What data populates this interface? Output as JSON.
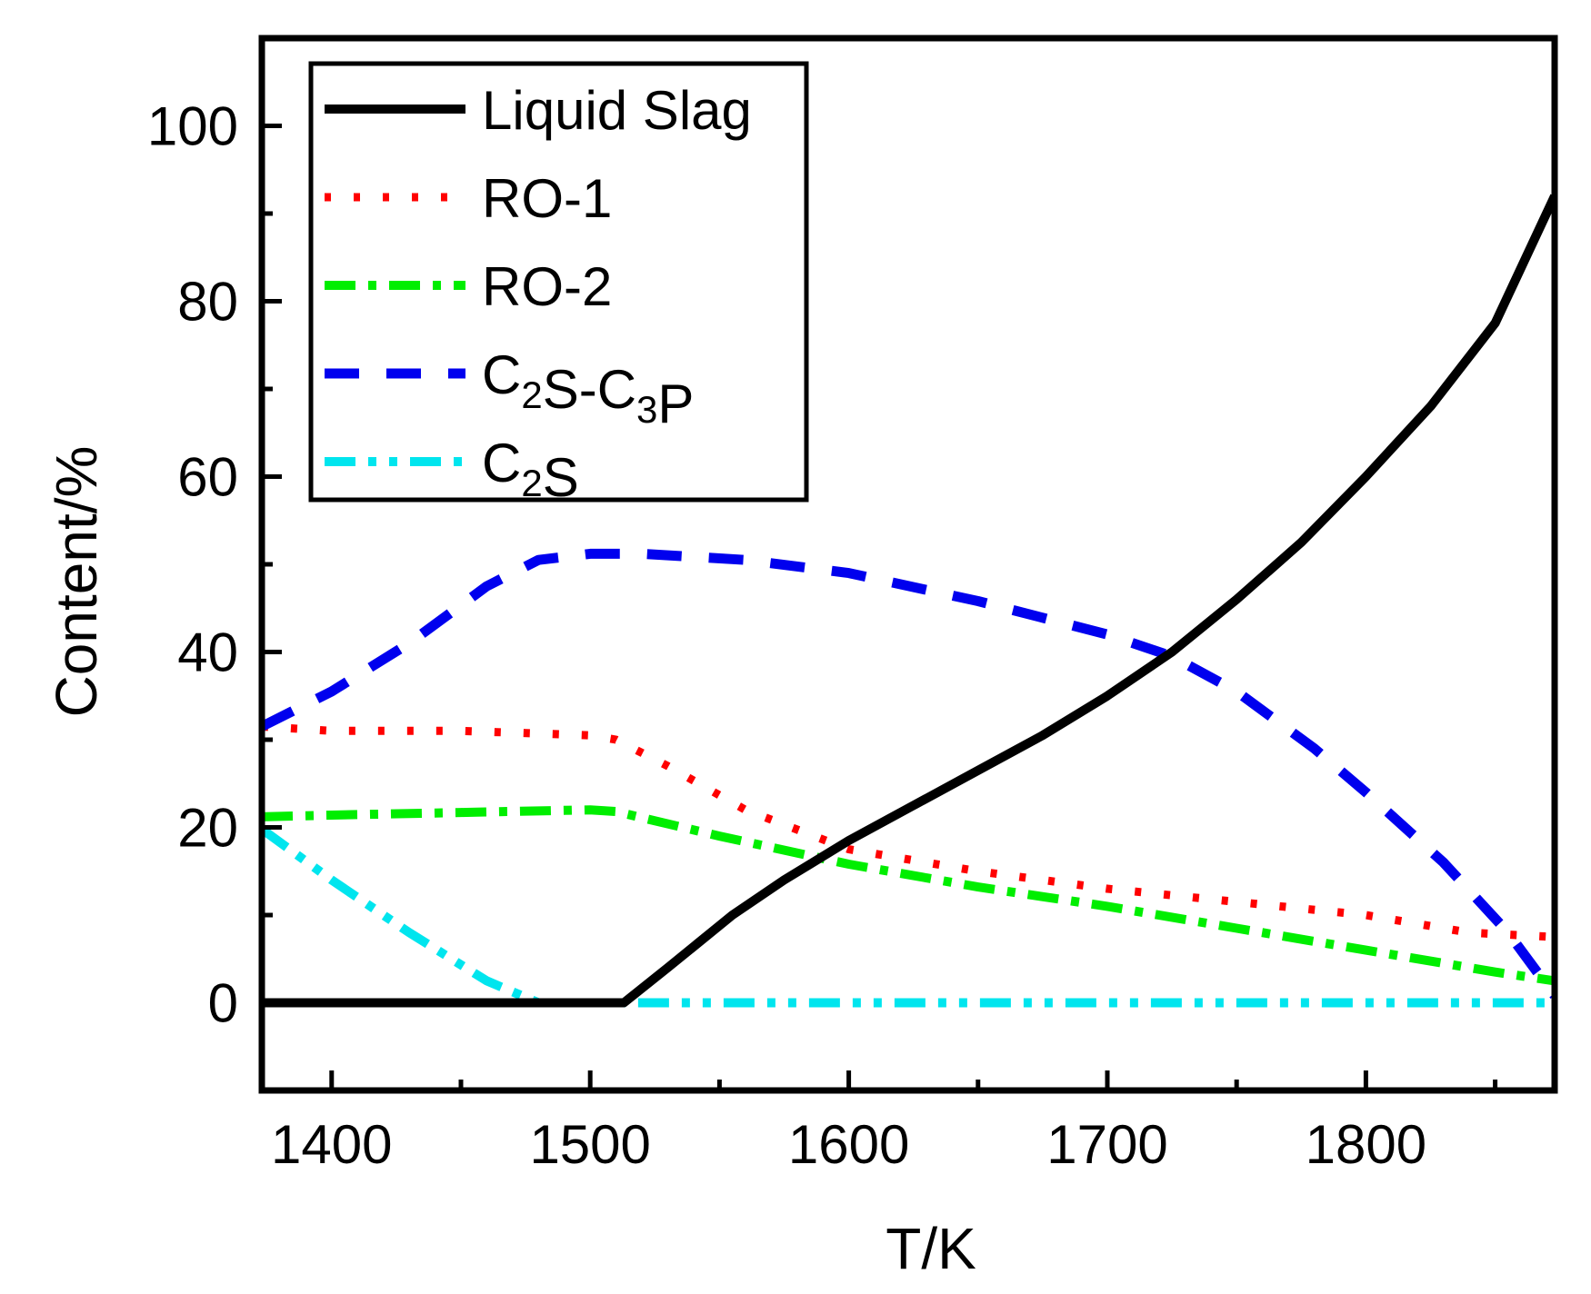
{
  "chart_data": {
    "type": "line",
    "title": "",
    "xlabel": "T/K",
    "ylabel": "Content/%",
    "xlim": [
      1373,
      1873
    ],
    "ylim": [
      -10,
      110
    ],
    "xticks": [
      1400,
      1500,
      1600,
      1700,
      1800
    ],
    "yticks": [
      0,
      20,
      40,
      60,
      80,
      100
    ],
    "x_minor_step": 50,
    "y_minor_step": 10,
    "legend_position": "top-left",
    "series": [
      {
        "name": "Liquid Slag",
        "legend_label": "Liquid Slag",
        "color": "#000000",
        "style": "solid",
        "x": [
          1373,
          1400,
          1450,
          1480,
          1500,
          1513,
          1530,
          1555,
          1575,
          1600,
          1625,
          1650,
          1675,
          1700,
          1725,
          1750,
          1775,
          1800,
          1825,
          1850,
          1873
        ],
        "values": [
          0,
          0,
          0,
          0,
          0,
          0,
          4,
          10,
          14,
          18.5,
          22.5,
          26.5,
          30.5,
          35,
          40,
          46,
          52.5,
          60,
          68,
          77.5,
          92
        ]
      },
      {
        "name": "RO-1",
        "legend_label": "RO-1",
        "color": "#ff0000",
        "style": "dotted",
        "x": [
          1373,
          1400,
          1450,
          1500,
          1510,
          1530,
          1560,
          1600,
          1650,
          1700,
          1750,
          1800,
          1840,
          1873
        ],
        "values": [
          31.5,
          31,
          31,
          30.5,
          30,
          27,
          22,
          17.5,
          15,
          13,
          11.5,
          10,
          8,
          7.5
        ]
      },
      {
        "name": "RO-2",
        "legend_label": "RO-2",
        "color": "#00ee00",
        "style": "dashdot",
        "x": [
          1373,
          1400,
          1450,
          1500,
          1510,
          1550,
          1600,
          1650,
          1700,
          1750,
          1800,
          1850,
          1873
        ],
        "values": [
          21.2,
          21.4,
          21.7,
          22,
          21.8,
          19,
          15.8,
          13.2,
          11,
          8.5,
          6,
          3.5,
          2.5
        ]
      },
      {
        "name": "C2S-C3P",
        "legend_label": "C",
        "legend_parts": [
          {
            "text": "C",
            "sub": "2"
          },
          {
            "text": "S-C",
            "sub": "3"
          },
          {
            "text": "P",
            "sub": ""
          }
        ],
        "color": "#0000ee",
        "style": "dashed",
        "x": [
          1373,
          1400,
          1430,
          1460,
          1480,
          1500,
          1520,
          1560,
          1600,
          1650,
          1700,
          1725,
          1750,
          1780,
          1800,
          1830,
          1855,
          1873
        ],
        "values": [
          31.5,
          35.5,
          41,
          47.5,
          50.5,
          51.2,
          51.2,
          50.5,
          49,
          45.8,
          42,
          39.5,
          35.5,
          29,
          24,
          16,
          8,
          0.8
        ]
      },
      {
        "name": "C2S",
        "legend_label": "C",
        "legend_parts": [
          {
            "text": "C",
            "sub": "2"
          },
          {
            "text": "S",
            "sub": ""
          }
        ],
        "color": "#00e5ee",
        "style": "dashdotdot",
        "x": [
          1373,
          1400,
          1430,
          1460,
          1480,
          1500,
          1600,
          1700,
          1800,
          1873
        ],
        "values": [
          19.8,
          14,
          8,
          2.5,
          0,
          0,
          0,
          0,
          0,
          0
        ]
      }
    ]
  }
}
